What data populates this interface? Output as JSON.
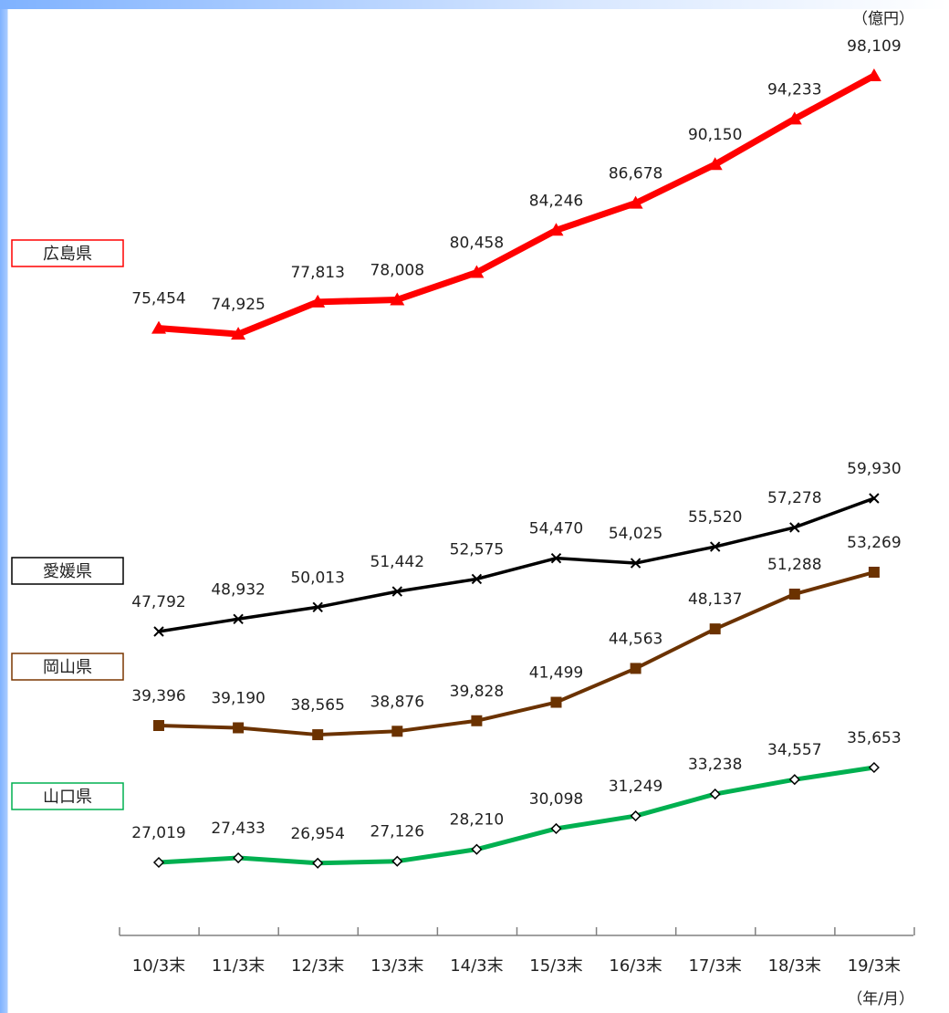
{
  "chart_data": {
    "type": "line",
    "categories": [
      "10/3末",
      "11/3末",
      "12/3末",
      "13/3末",
      "14/3末",
      "15/3末",
      "16/3末",
      "17/3末",
      "18/3末",
      "19/3末"
    ],
    "y_unit": "（億円）",
    "x_unit": "（年/月）",
    "series": [
      {
        "name": "広島県",
        "color": "#ff0000",
        "marker": "triangle",
        "values": [
          75454,
          74925,
          77813,
          78008,
          80458,
          84246,
          86678,
          90150,
          94233,
          98109
        ],
        "labels": [
          "75,454",
          "74,925",
          "77,813",
          "78,008",
          "80,458",
          "84,246",
          "86,678",
          "90,150",
          "94,233",
          "98,109"
        ]
      },
      {
        "name": "愛媛県",
        "color": "#000000",
        "marker": "x",
        "values": [
          47792,
          48932,
          50013,
          51442,
          52575,
          54470,
          54025,
          55520,
          57278,
          59930
        ],
        "labels": [
          "47,792",
          "48,932",
          "50,013",
          "51,442",
          "52,575",
          "54,470",
          "54,025",
          "55,520",
          "57,278",
          "59,930"
        ]
      },
      {
        "name": "岡山県",
        "color": "#6b3200",
        "marker": "square",
        "values": [
          39396,
          39190,
          38565,
          38876,
          39828,
          41499,
          44563,
          48137,
          51288,
          53269
        ],
        "labels": [
          "39,396",
          "39,190",
          "38,565",
          "38,876",
          "39,828",
          "41,499",
          "44,563",
          "48,137",
          "51,288",
          "53,269"
        ]
      },
      {
        "name": "山口県",
        "color": "#00b050",
        "marker": "diamond",
        "values": [
          27019,
          27433,
          26954,
          27126,
          28210,
          30098,
          31249,
          33238,
          34557,
          35653
        ],
        "labels": [
          "27,019",
          "27,433",
          "26,954",
          "27,126",
          "28,210",
          "30,098",
          "31,249",
          "33,238",
          "34,557",
          "35,653"
        ]
      }
    ],
    "grid": false,
    "legend": "left"
  }
}
